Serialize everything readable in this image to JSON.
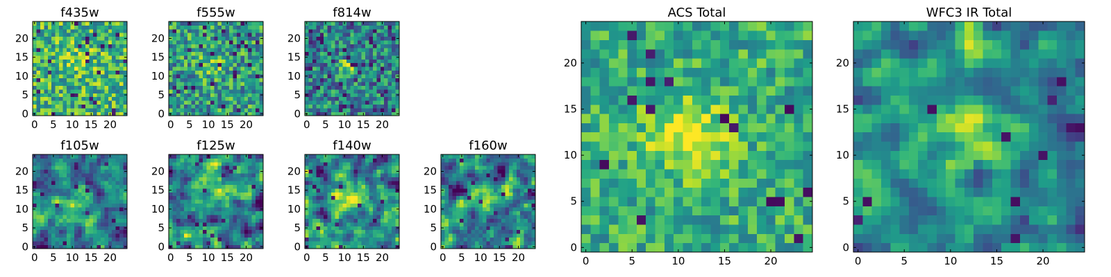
{
  "chart_data": [
    {
      "type": "heatmap",
      "title": "f435w",
      "size": 25,
      "seed": 1,
      "blob": {
        "x": 12,
        "y": 14,
        "amp": 0.15,
        "sigma": 3
      },
      "smooth": 0,
      "noise": 0.3,
      "darkrate": 0.05,
      "base": 0.65,
      "xticks": [
        0,
        5,
        10,
        15,
        20
      ],
      "yticks": [
        0,
        5,
        10,
        15,
        20
      ],
      "xlim": [
        -0.5,
        24.5
      ],
      "ylim": [
        -0.5,
        24.5
      ],
      "colormap": "viridis"
    },
    {
      "type": "heatmap",
      "title": "f555w",
      "size": 25,
      "seed": 2,
      "blob": {
        "x": 11,
        "y": 13,
        "amp": 0.25,
        "sigma": 2.2
      },
      "smooth": 0,
      "noise": 0.3,
      "darkrate": 0.05,
      "base": 0.55,
      "xticks": [
        0,
        5,
        10,
        15,
        20
      ],
      "yticks": [
        0,
        5,
        10,
        15,
        20
      ],
      "xlim": [
        -0.5,
        24.5
      ],
      "ylim": [
        -0.5,
        24.5
      ],
      "colormap": "viridis"
    },
    {
      "type": "heatmap",
      "title": "f814w",
      "size": 25,
      "seed": 3,
      "blob": {
        "x": 11,
        "y": 12,
        "amp": 0.45,
        "sigma": 1.8
      },
      "smooth": 0,
      "noise": 0.3,
      "darkrate": 0.06,
      "base": 0.45,
      "xticks": [
        0,
        5,
        10,
        15,
        20
      ],
      "yticks": [
        0,
        5,
        10,
        15,
        20
      ],
      "xlim": [
        -0.5,
        24.5
      ],
      "ylim": [
        -0.5,
        24.5
      ],
      "colormap": "viridis"
    },
    {
      "type": "heatmap",
      "title": "f105w",
      "size": 25,
      "seed": 4,
      "blob": {
        "x": 11,
        "y": 13,
        "amp": 0.55,
        "sigma": 2.5
      },
      "smooth": 1,
      "noise": 0.35,
      "darkrate": 0.03,
      "base": 0.4,
      "xticks": [
        0,
        5,
        10,
        15,
        20
      ],
      "yticks": [
        0,
        5,
        10,
        15,
        20
      ],
      "xlim": [
        -0.5,
        24.5
      ],
      "ylim": [
        -0.5,
        24.5
      ],
      "colormap": "viridis"
    },
    {
      "type": "heatmap",
      "title": "f125w",
      "size": 25,
      "seed": 5,
      "blob": {
        "x": 12,
        "y": 14,
        "amp": 0.4,
        "sigma": 3
      },
      "smooth": 1,
      "noise": 0.4,
      "darkrate": 0.03,
      "base": 0.45,
      "xticks": [
        0,
        5,
        10,
        15,
        20
      ],
      "yticks": [
        0,
        5,
        10,
        15,
        20
      ],
      "xlim": [
        -0.5,
        24.5
      ],
      "ylim": [
        -0.5,
        24.5
      ],
      "colormap": "viridis"
    },
    {
      "type": "heatmap",
      "title": "f140w",
      "size": 25,
      "seed": 6,
      "blob": {
        "x": 11,
        "y": 13,
        "amp": 0.4,
        "sigma": 3
      },
      "smooth": 1,
      "noise": 0.4,
      "darkrate": 0.03,
      "base": 0.45,
      "xticks": [
        0,
        5,
        10,
        15,
        20
      ],
      "yticks": [
        0,
        5,
        10,
        15,
        20
      ],
      "xlim": [
        -0.5,
        24.5
      ],
      "ylim": [
        -0.5,
        24.5
      ],
      "colormap": "viridis"
    },
    {
      "type": "heatmap",
      "title": "f160w",
      "size": 25,
      "seed": 7,
      "blob": {
        "x": 12,
        "y": 13,
        "amp": 0.45,
        "sigma": 2.5
      },
      "smooth": 1,
      "noise": 0.4,
      "darkrate": 0.03,
      "base": 0.45,
      "xticks": [
        0,
        5,
        10,
        15,
        20
      ],
      "yticks": [
        0,
        5,
        10,
        15,
        20
      ],
      "xlim": [
        -0.5,
        24.5
      ],
      "ylim": [
        -0.5,
        24.5
      ],
      "colormap": "viridis"
    },
    {
      "type": "heatmap",
      "title": "ACS Total",
      "size": 25,
      "seed": 8,
      "blob": {
        "x": 11,
        "y": 12,
        "amp": 0.35,
        "sigma": 3
      },
      "smooth": 0,
      "noise": 0.22,
      "darkrate": 0.025,
      "base": 0.62,
      "xticks": [
        0,
        5,
        10,
        15,
        20
      ],
      "yticks": [
        0,
        5,
        10,
        15,
        20
      ],
      "xlim": [
        -0.5,
        24.5
      ],
      "ylim": [
        -0.5,
        24.5
      ],
      "colormap": "viridis"
    },
    {
      "type": "heatmap",
      "title": "WFC3 IR Total",
      "size": 25,
      "seed": 9,
      "blob": {
        "x": 12,
        "y": 13,
        "amp": 0.5,
        "sigma": 2.5
      },
      "smooth": 1,
      "noise": 0.3,
      "darkrate": 0.02,
      "base": 0.45,
      "blob2": {
        "x": 12,
        "y": 21,
        "amp": 0.35,
        "sigma": 1.8
      },
      "xticks": [
        0,
        5,
        10,
        15,
        20
      ],
      "yticks": [
        0,
        5,
        10,
        15,
        20
      ],
      "xlim": [
        -0.5,
        24.5
      ],
      "ylim": [
        -0.5,
        24.5
      ],
      "colormap": "viridis"
    }
  ]
}
